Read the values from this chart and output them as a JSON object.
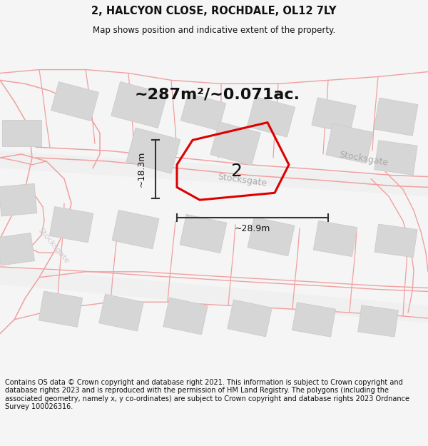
{
  "title": "2, HALCYON CLOSE, ROCHDALE, OL12 7LY",
  "subtitle": "Map shows position and indicative extent of the property.",
  "area_text": "~287m²/~0.071ac.",
  "width_label": "~28.9m",
  "height_label": "~18.3m",
  "property_number": "2",
  "copyright_text": "Contains OS data © Crown copyright and database right 2021. This information is subject to Crown copyright and database rights 2023 and is reproduced with the permission of HM Land Registry. The polygons (including the associated geometry, namely x, y co-ordinates) are subject to Crown copyright and database rights 2023 Ordnance Survey 100026316.",
  "bg_color": "#f5f5f5",
  "map_bg_color": "#ffffff",
  "building_color": "#d6d6d6",
  "building_edge_color": "#cccccc",
  "property_outline_color": "#dd0000",
  "pink_line_color": "#f0a0a0",
  "road_label_color": "#aaaaaa",
  "dim_line_color": "#333333",
  "title_fontsize": 10.5,
  "subtitle_fontsize": 8.5,
  "area_fontsize": 16,
  "label_fontsize": 9,
  "prop_num_fontsize": 18,
  "road_label_fontsize": 9,
  "copyright_fontsize": 7.0
}
